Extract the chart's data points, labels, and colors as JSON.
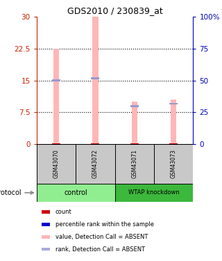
{
  "title": "GDS2010 / 230839_at",
  "samples": [
    "GSM43070",
    "GSM43072",
    "GSM43071",
    "GSM43073"
  ],
  "ylim_left": [
    0,
    30
  ],
  "ylim_right": [
    0,
    100
  ],
  "yticks_left": [
    0,
    7.5,
    15,
    22.5,
    30
  ],
  "yticks_right": [
    0,
    25,
    50,
    75,
    100
  ],
  "ytick_labels_left": [
    "0",
    "7.5",
    "15",
    "22.5",
    "30"
  ],
  "ytick_labels_right": [
    "0",
    "25",
    "50",
    "75",
    "100%"
  ],
  "pink_bar_values": [
    22.5,
    30,
    10,
    10.5
  ],
  "blue_marker_values": [
    15,
    15.5,
    9,
    9.5
  ],
  "pink_color": "#FFB6B6",
  "blue_color": "#9999CC",
  "sample_bg": "#C8C8C8",
  "ctrl_color": "#90EE90",
  "wtap_color": "#3CB83C",
  "legend_items": [
    {
      "color": "#CC0000",
      "label": "count"
    },
    {
      "color": "#0000CC",
      "label": "percentile rank within the sample"
    },
    {
      "color": "#FFB6B6",
      "label": "value, Detection Call = ABSENT"
    },
    {
      "color": "#AAAADD",
      "label": "rank, Detection Call = ABSENT"
    }
  ],
  "left_axis_color": "#CC2200",
  "right_axis_color": "#0000BB"
}
